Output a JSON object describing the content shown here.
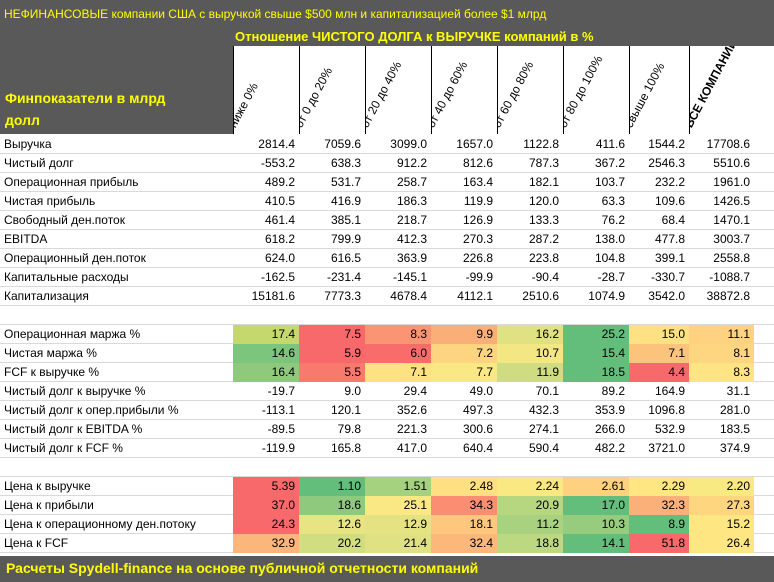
{
  "title_main": "НЕФИНАНСОВЫЕ компании США с выручкой свыше $500 млн и капитализацией более $1 млрд",
  "title_sub": "Отношение ЧИСТОГО ДОЛГА к ВЫРУЧКЕ компаний в %",
  "row_header_line1": "Финпоказатели в млрд",
  "row_header_line2": "долл",
  "columns": [
    "ниже 0%",
    "от 0 до 20%",
    "от 20 до 40%",
    "от 40 до 60%",
    "от 60 до 80%",
    "от 80 до 100%",
    "свыше 100%",
    "ВСЕ КОМПАНИИ"
  ],
  "footer": "Расчеты Spydell-finance на основе публичной отчетности компаний",
  "section1": [
    {
      "label": "Выручка",
      "values": [
        "2814.4",
        "7059.6",
        "3099.0",
        "1657.0",
        "1122.8",
        "411.6",
        "1544.2",
        "17708.6"
      ]
    },
    {
      "label": "Чистый долг",
      "values": [
        "-553.2",
        "638.3",
        "912.2",
        "812.6",
        "787.3",
        "367.2",
        "2546.3",
        "5510.6"
      ]
    },
    {
      "label": "Операционная прибыль",
      "values": [
        "489.2",
        "531.7",
        "258.7",
        "163.4",
        "182.1",
        "103.7",
        "232.2",
        "1961.0"
      ]
    },
    {
      "label": "Чистая прибыль",
      "values": [
        "410.5",
        "416.9",
        "186.3",
        "119.9",
        "120.0",
        "63.3",
        "109.6",
        "1426.5"
      ]
    },
    {
      "label": "Свободный ден.поток",
      "values": [
        "461.4",
        "385.1",
        "218.7",
        "126.9",
        "133.3",
        "76.2",
        "68.4",
        "1470.1"
      ]
    },
    {
      "label": "EBITDA",
      "values": [
        "618.2",
        "799.9",
        "412.3",
        "270.3",
        "287.2",
        "138.0",
        "477.8",
        "3003.7"
      ]
    },
    {
      "label": "Операционный ден.поток",
      "values": [
        "624.0",
        "616.5",
        "363.9",
        "226.8",
        "223.8",
        "104.8",
        "399.1",
        "2558.8"
      ]
    },
    {
      "label": "Капитальные расходы",
      "values": [
        "-162.5",
        "-231.4",
        "-145.1",
        "-99.9",
        "-90.4",
        "-28.7",
        "-330.7",
        "-1088.7"
      ]
    },
    {
      "label": "Капитализация",
      "values": [
        "15181.6",
        "7773.3",
        "4678.4",
        "4112.1",
        "2510.6",
        "1074.9",
        "3542.0",
        "38872.8"
      ]
    }
  ],
  "section2": [
    {
      "label": "Операционная маржа %",
      "values": [
        "17.4",
        "7.5",
        "8.3",
        "9.9",
        "16.2",
        "25.2",
        "15.0",
        "11.1"
      ],
      "colors": [
        "#c5d86d",
        "#f8696b",
        "#fa9473",
        "#fbaf78",
        "#dfe182",
        "#63be7b",
        "#fee182",
        "#fed280"
      ]
    },
    {
      "label": "Чистая маржа %",
      "values": [
        "14.6",
        "5.9",
        "6.0",
        "7.2",
        "10.7",
        "15.4",
        "7.1",
        "8.1"
      ],
      "colors": [
        "#7cc57d",
        "#f8696b",
        "#f86d6c",
        "#fdd580",
        "#f2e783",
        "#63be7b",
        "#fcc37c",
        "#fed580"
      ]
    },
    {
      "label": "FCF к выручке %",
      "values": [
        "16.4",
        "5.5",
        "7.1",
        "7.7",
        "11.9",
        "18.5",
        "4.4",
        "8.3"
      ],
      "colors": [
        "#8ec97e",
        "#f8796e",
        "#fee282",
        "#f9e883",
        "#cfdc81",
        "#63be7b",
        "#f8696b",
        "#fee482"
      ]
    },
    {
      "label": "Чистый долг к выручке %",
      "values": [
        "-19.7",
        "9.0",
        "29.4",
        "49.0",
        "70.1",
        "89.2",
        "164.9",
        "31.1"
      ],
      "colors": []
    },
    {
      "label": "Чистый долг к опер.прибыли %",
      "values": [
        "-113.1",
        "120.1",
        "352.6",
        "497.3",
        "432.3",
        "353.9",
        "1096.8",
        "281.0"
      ],
      "colors": []
    },
    {
      "label": "Чистый долг к EBITDA %",
      "values": [
        "-89.5",
        "79.8",
        "221.3",
        "300.6",
        "274.1",
        "266.0",
        "532.9",
        "183.5"
      ],
      "colors": []
    },
    {
      "label": "Чистый долг к FCF %",
      "values": [
        "-119.9",
        "165.8",
        "417.0",
        "640.4",
        "590.4",
        "482.2",
        "3721.0",
        "374.9"
      ],
      "colors": []
    }
  ],
  "section3": [
    {
      "label": "Цена к выручке",
      "values": [
        "5.39",
        "1.10",
        "1.51",
        "2.48",
        "2.24",
        "2.61",
        "2.29",
        "2.20"
      ],
      "colors": [
        "#f8696b",
        "#63be7b",
        "#a5d27f",
        "#fee082",
        "#fae983",
        "#fdd17f",
        "#fee783",
        "#f8e983"
      ]
    },
    {
      "label": "Цена к прибыли",
      "values": [
        "37.0",
        "18.6",
        "25.1",
        "34.3",
        "20.9",
        "17.0",
        "32.3",
        "27.3"
      ],
      "colors": [
        "#f8696b",
        "#8ec97e",
        "#f9e883",
        "#fb8e72",
        "#b6d680",
        "#63be7b",
        "#fcb079",
        "#fed680"
      ]
    },
    {
      "label": "Цена к операционному ден.потоку",
      "values": [
        "24.3",
        "12.6",
        "12.9",
        "18.1",
        "11.2",
        "10.3",
        "8.9",
        "15.2"
      ],
      "colors": [
        "#f8696b",
        "#e8e483",
        "#e4e282",
        "#fdc87d",
        "#a8d27f",
        "#97cc7e",
        "#63be7b",
        "#fee782"
      ]
    },
    {
      "label": "Цена к FCF",
      "values": [
        "32.9",
        "20.2",
        "21.4",
        "32.4",
        "18.8",
        "14.1",
        "51.8",
        "26.4"
      ],
      "colors": [
        "#fcb57a",
        "#d0dd81",
        "#dfe182",
        "#fcb87a",
        "#bcd880",
        "#63be7b",
        "#f8696b",
        "#fee783"
      ]
    }
  ]
}
